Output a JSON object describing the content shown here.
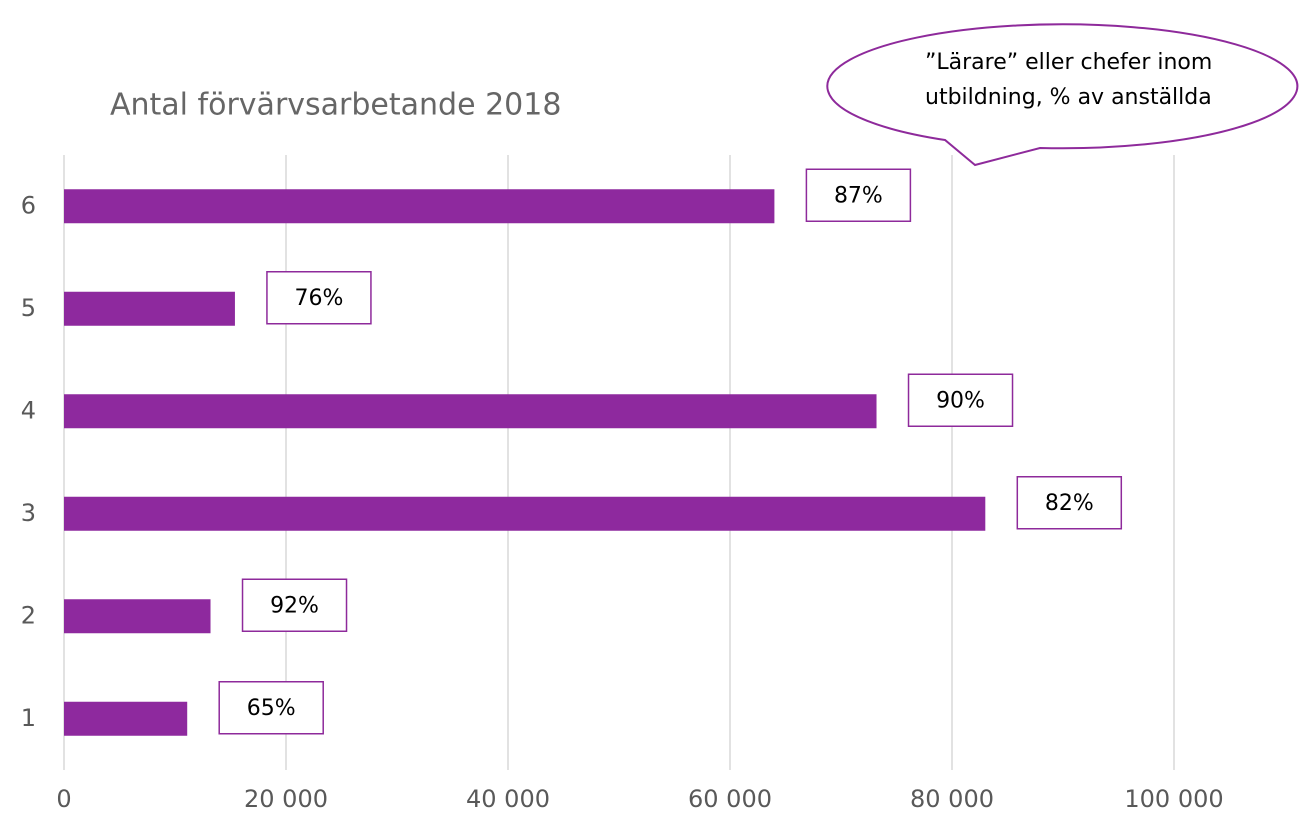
{
  "chart_data": {
    "type": "hbar",
    "title": "Antal förvärvsarbetande 2018",
    "categories": [
      "1",
      "2",
      "3",
      "4",
      "5",
      "6"
    ],
    "values": [
      11100,
      13200,
      83000,
      73200,
      15400,
      64000
    ],
    "color": "#8e299e",
    "xlim": [
      0,
      100000
    ],
    "xticks": [
      0,
      {
        "value": 20000,
        "label": "20 000"
      },
      {
        "value": 40000,
        "label": "40 000"
      },
      {
        "value": 60000,
        "label": "60 000"
      },
      {
        "value": 80000,
        "label": "80 000"
      },
      {
        "value": 100000,
        "label": "100 000"
      }
    ],
    "grid": true,
    "shares": {
      "values": [
        65,
        92,
        82,
        90,
        76,
        87
      ],
      "value_labels": [
        "65%",
        "92%",
        "82%",
        "90%",
        "76%",
        "87%"
      ]
    },
    "callout": [
      "”Lärare” eller chefer inom",
      "utbildning, % av anställda"
    ]
  }
}
